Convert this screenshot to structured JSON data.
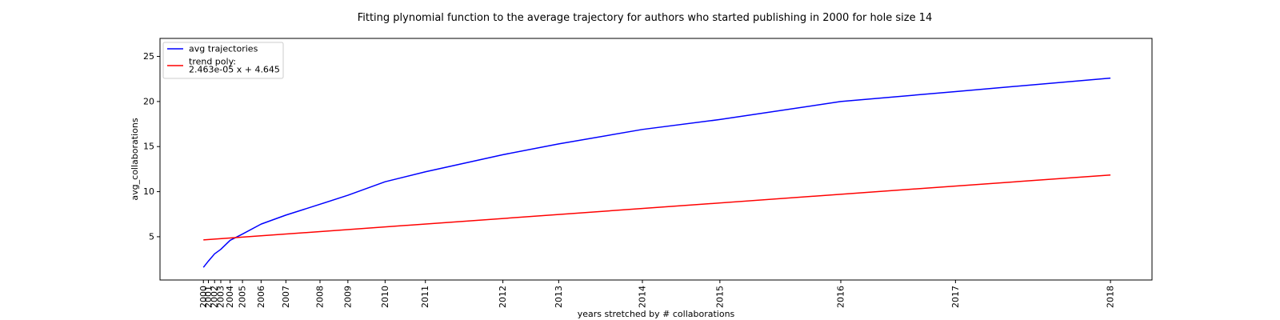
{
  "chart_data": {
    "type": "line",
    "title": "Fitting plynomial function to the average trajectory for authors who started publishing in 2000 for hole size 14",
    "xlabel": "years stretched by # collaborations",
    "ylabel": "avg_collaborations",
    "x_ticks": [
      {
        "label": "2000",
        "x": 0
      },
      {
        "label": "2001",
        "x": 1609
      },
      {
        "label": "2002",
        "x": 3609
      },
      {
        "label": "2003",
        "x": 5609
      },
      {
        "label": "2004",
        "x": 8609
      },
      {
        "label": "2005",
        "x": 12609
      },
      {
        "label": "2006",
        "x": 18609
      },
      {
        "label": "2007",
        "x": 26609
      },
      {
        "label": "2008",
        "x": 37609
      },
      {
        "label": "2009",
        "x": 46609
      },
      {
        "label": "2010",
        "x": 58609
      },
      {
        "label": "2011",
        "x": 71609
      },
      {
        "label": "2012",
        "x": 96609
      },
      {
        "label": "2013",
        "x": 114609
      },
      {
        "label": "2014",
        "x": 141609
      },
      {
        "label": "2015",
        "x": 166609
      },
      {
        "label": "2016",
        "x": 205609
      },
      {
        "label": "2017",
        "x": 242609
      },
      {
        "label": "2018",
        "x": 292609
      }
    ],
    "y_ticks": [
      5,
      10,
      15,
      20,
      25
    ],
    "xlim": [
      -14000,
      306000
    ],
    "ylim": [
      0.2,
      27.0
    ],
    "grid": false,
    "legend_position": "top-left",
    "series": [
      {
        "name": "avg trajectories",
        "color": "#0000ff",
        "x": [
          0,
          1609,
          3609,
          5609,
          8609,
          12609,
          18609,
          26609,
          37609,
          46609,
          58609,
          71609,
          96609,
          114609,
          141609,
          166609,
          205609,
          242609,
          292609
        ],
        "y": [
          1.6,
          2.3,
          3.1,
          3.6,
          4.6,
          5.3,
          6.4,
          7.4,
          8.6,
          9.6,
          11.1,
          12.2,
          14.1,
          15.3,
          16.9,
          18.0,
          20.0,
          21.1,
          22.6
        ]
      },
      {
        "name": "trend poly:\n2.463e-05 x + 4.645",
        "color": "#ff0000",
        "x": [
          0,
          292609
        ],
        "y": [
          4.645,
          11.852
        ]
      }
    ],
    "legend": [
      {
        "color": "#0000ff",
        "lines": [
          "avg trajectories"
        ]
      },
      {
        "color": "#ff0000",
        "lines": [
          "trend poly:",
          "2.463e-05 x + 4.645"
        ]
      }
    ]
  }
}
